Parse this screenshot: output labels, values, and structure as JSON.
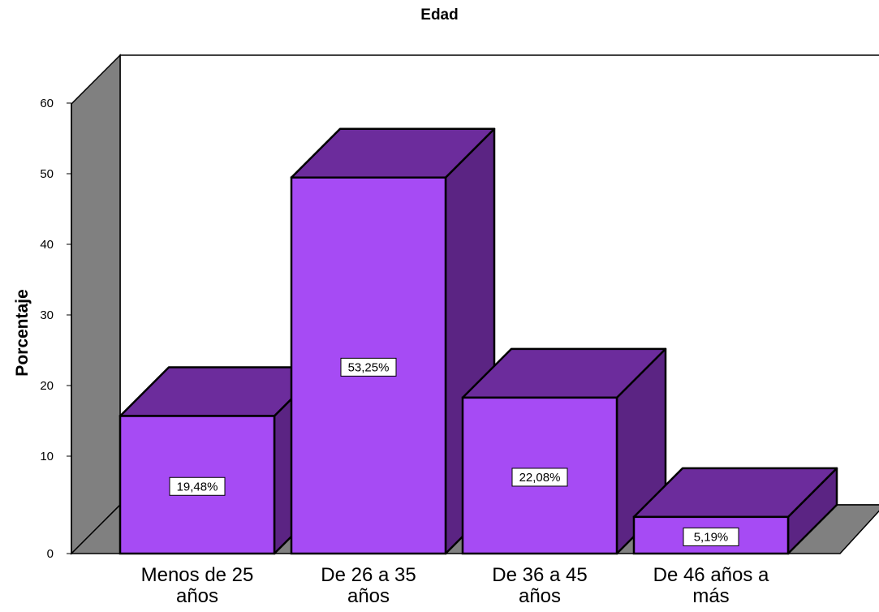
{
  "chart_data": {
    "type": "bar",
    "title": "Edad",
    "xlabel": "",
    "ylabel": "Porcentaje",
    "categories": [
      [
        "Menos de 25",
        "años"
      ],
      [
        "De 26 a 35",
        "años"
      ],
      [
        "De 36 a 45",
        "años"
      ],
      [
        "De 46 años a",
        "más"
      ]
    ],
    "values": [
      19.48,
      53.25,
      22.08,
      5.19
    ],
    "data_labels": [
      "19,48%",
      "53,25%",
      "22,08%",
      "5,19%"
    ],
    "yticks": [
      0,
      10,
      20,
      30,
      40,
      50,
      60
    ],
    "ylim": [
      0,
      60
    ],
    "style": "3d",
    "grid": false,
    "legend": "none",
    "colors": {
      "bar_front": "#A64BF4",
      "bar_top": "#6C2C9C",
      "bar_side": "#5B2483",
      "wall": "#808080",
      "floor": "#808080",
      "plot_bg": "#FFFFFF"
    }
  }
}
